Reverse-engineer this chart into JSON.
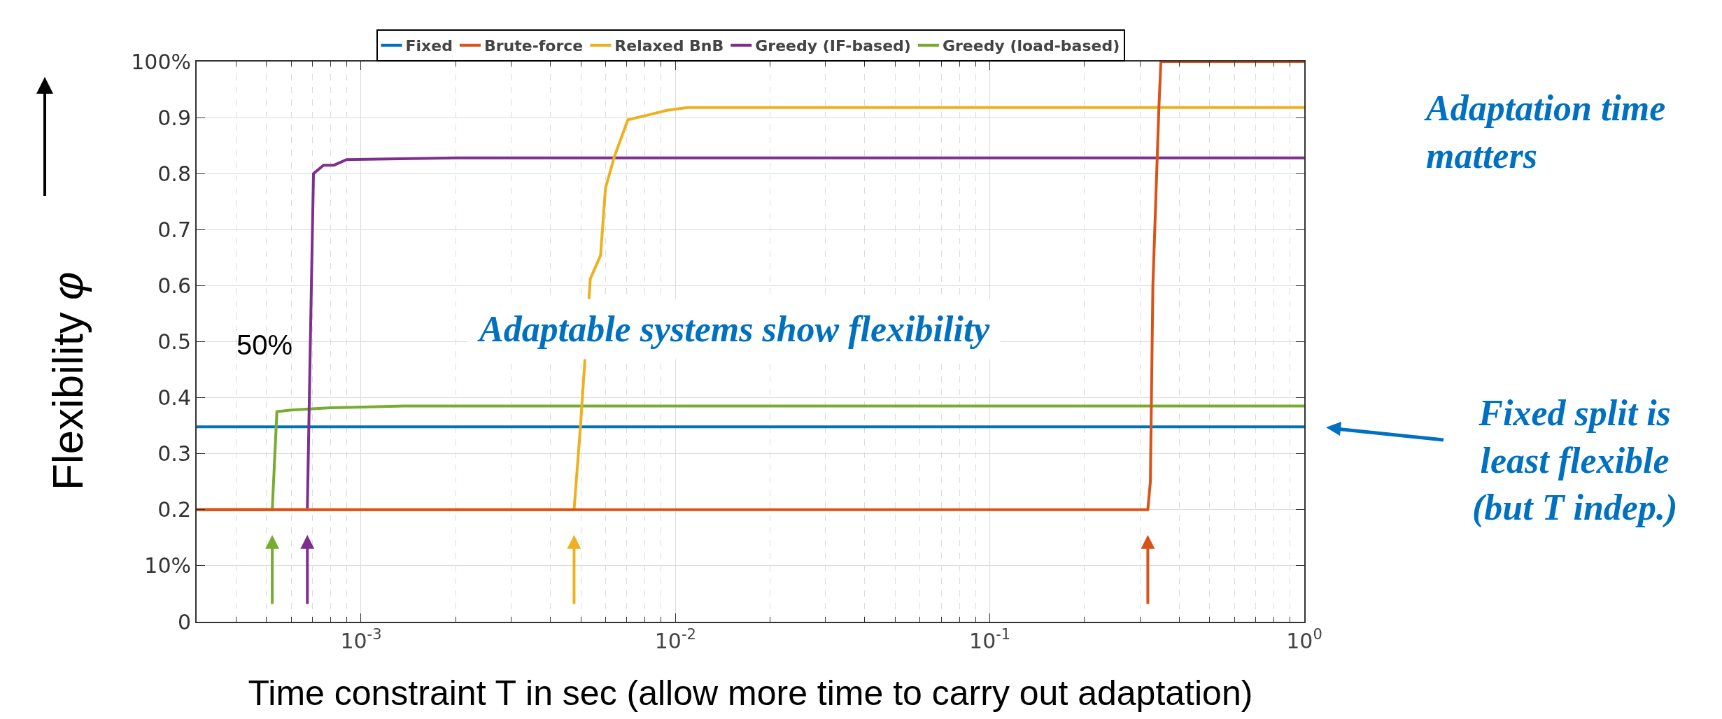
{
  "chart_data": {
    "type": "line",
    "xlabel": "Time constraint T in sec (allow more time to carry out adaptation)",
    "ylabel": "Flexibility φ",
    "log": "x",
    "grid": true,
    "legend": "top",
    "line_style": "solid",
    "marker": "none",
    "xlim": [
      0.0003,
      1
    ],
    "xticks": [
      {
        "value": 0.001,
        "label": "10$^{-3}$"
      },
      {
        "value": 0.01,
        "label": "10$^{-2}$"
      },
      {
        "value": 0.1,
        "label": "10$^{-1}$"
      },
      {
        "value": 1,
        "label": "10$^{0}$"
      }
    ],
    "ylim": [
      0,
      1
    ],
    "yticks": [
      0,
      {
        "value": 0.1,
        "label": "10%"
      },
      0.2,
      0.3,
      0.4,
      0.5,
      0.6,
      0.7,
      0.8,
      0.9,
      {
        "value": 1,
        "label": "100%"
      }
    ],
    "series": [
      {
        "name": "Fixed",
        "color": "#0072bd",
        "x": [
          0.0003,
          1
        ],
        "values": [
          0.348,
          0.348
        ]
      },
      {
        "name": "Brute-force",
        "color": "#d95319",
        "x": [
          0.0003,
          0.318,
          0.324,
          0.33,
          0.345,
          0.35,
          1
        ],
        "values": [
          0.2,
          0.2,
          0.25,
          0.6,
          0.92,
          1,
          1
        ]
      },
      {
        "name": "Relaxed BnB",
        "color": "#edb120",
        "x": [
          0.0003,
          0.00476,
          0.00499,
          0.00536,
          0.00578,
          0.00599,
          0.0064,
          0.00706,
          0.0081,
          0.0094,
          0.0109,
          1
        ],
        "values": [
          0.2,
          0.2,
          0.35,
          0.612,
          0.654,
          0.774,
          0.831,
          0.896,
          0.904,
          0.913,
          0.918,
          0.918
        ]
      },
      {
        "name": "Greedy (IF-based)",
        "color": "#7e2f8e",
        "x": [
          0.0003,
          0.000675,
          0.00069,
          0.000706,
          0.00076,
          0.00082,
          0.0009,
          0.002,
          1
        ],
        "values": [
          0.2,
          0.2,
          0.5,
          0.8,
          0.815,
          0.815,
          0.825,
          0.828,
          0.828
        ]
      },
      {
        "name": "Greedy (load-based)",
        "color": "#77ac30",
        "x": [
          0.0003,
          0.000522,
          0.00054,
          0.0006,
          0.0008,
          0.00137,
          1
        ],
        "values": [
          0.2,
          0.2,
          0.375,
          0.378,
          0.382,
          0.385,
          0.385
        ]
      }
    ],
    "annotations": [
      "50%",
      "Adaptable systems show flexibility",
      "Adaptation time matters",
      "Fixed split is least flexible (but T indep.)"
    ]
  }
}
